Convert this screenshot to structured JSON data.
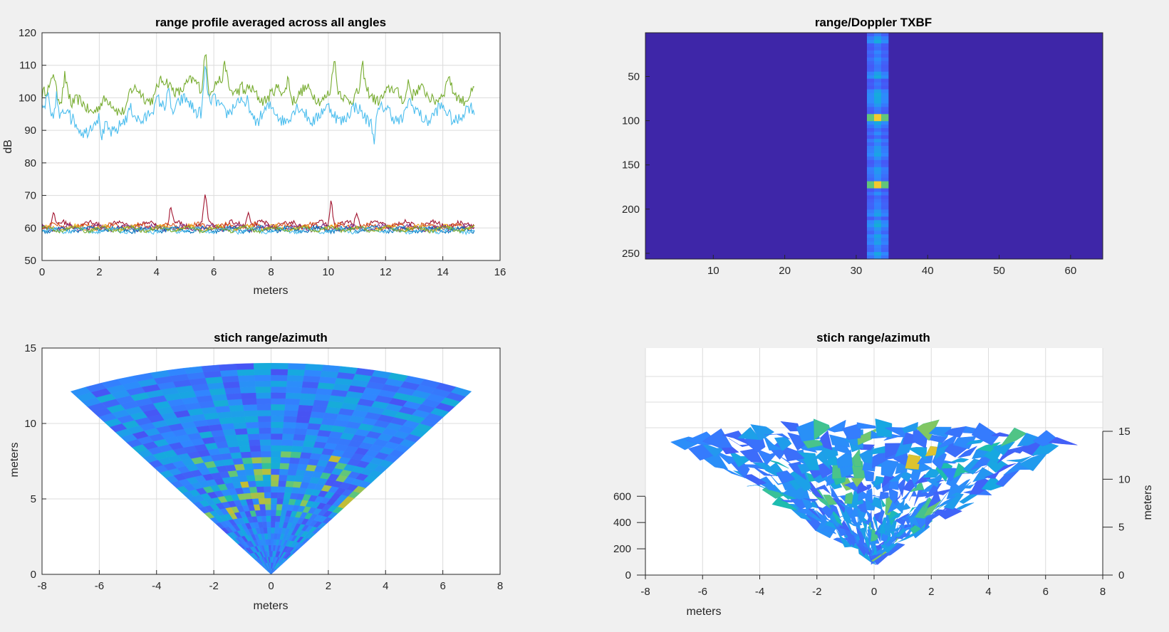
{
  "chart_data": [
    {
      "type": "line",
      "title": "range profile averaged across all angles",
      "xlabel": "meters",
      "ylabel": "dB",
      "xlim": [
        0,
        16
      ],
      "ylim": [
        50,
        120
      ],
      "xticks": [
        "0",
        "2",
        "4",
        "6",
        "8",
        "10",
        "12",
        "14",
        "16"
      ],
      "yticks": [
        "50",
        "60",
        "70",
        "80",
        "90",
        "100",
        "110",
        "120"
      ],
      "grid": true,
      "x_range": [
        0,
        15.1
      ],
      "series": [
        {
          "color": "#77ac30",
          "level": 101,
          "jitter": 3.5,
          "peaks": [
            [
              0.4,
              108
            ],
            [
              0.8,
              110
            ],
            [
              5.7,
              116
            ],
            [
              6.4,
              108
            ],
            [
              8.6,
              109
            ],
            [
              10.2,
              112
            ],
            [
              11.2,
              109
            ],
            [
              12.8,
              108
            ],
            [
              14.2,
              106
            ]
          ]
        },
        {
          "color": "#4dbeee",
          "level": 95,
          "jitter": 4,
          "peaks": [
            [
              0.2,
              101
            ],
            [
              0.5,
              104
            ],
            [
              2.1,
              89
            ],
            [
              4.4,
              104
            ],
            [
              5.7,
              109
            ],
            [
              7.2,
              100
            ],
            [
              11.6,
              88
            ],
            [
              12.8,
              99
            ]
          ]
        },
        {
          "color": "#a2142f",
          "level": 61,
          "jitter": 1.5,
          "peaks": [
            [
              0.4,
              65
            ],
            [
              4.5,
              67
            ],
            [
              5.7,
              71
            ],
            [
              10.1,
              70
            ],
            [
              7.2,
              66
            ],
            [
              11.0,
              65
            ]
          ]
        },
        {
          "color": "#d95319",
          "level": 60.5,
          "jitter": 1.3,
          "peaks": []
        },
        {
          "color": "#edb120",
          "level": 60,
          "jitter": 1.2,
          "peaks": []
        },
        {
          "color": "#7e2f8e",
          "level": 60,
          "jitter": 1.2,
          "peaks": []
        },
        {
          "color": "#0072bd",
          "level": 59.5,
          "jitter": 1.2,
          "peaks": []
        },
        {
          "color": "#4dbeee",
          "level": 59.2,
          "jitter": 1.1,
          "peaks": []
        },
        {
          "color": "#77ac30",
          "level": 59.6,
          "jitter": 1.1,
          "peaks": []
        }
      ]
    },
    {
      "type": "heatmap",
      "title": "range/Doppler TXBF",
      "xlim": [
        0.5,
        64.5
      ],
      "ylim": [
        0.5,
        256.5
      ],
      "xticks": [
        "10",
        "20",
        "30",
        "40",
        "50",
        "60"
      ],
      "yticks": [
        "50",
        "100",
        "150",
        "200",
        "250"
      ],
      "background_color": "#3e26a8",
      "band_columns": [
        31.5,
        34.5
      ],
      "band_peak_rows": [
        95,
        172
      ],
      "colormap": "parula"
    },
    {
      "type": "heatmap",
      "title": "stich range/azimuth",
      "xlabel": "meters",
      "ylabel": "meters",
      "xlim": [
        -8,
        8
      ],
      "ylim": [
        0,
        15
      ],
      "xticks": [
        "-8",
        "-6",
        "-4",
        "-2",
        "0",
        "2",
        "4",
        "6",
        "8"
      ],
      "yticks": [
        "0",
        "5",
        "10",
        "15"
      ],
      "grid": true,
      "max_range": 14,
      "half_angle_deg": 30,
      "colormap": "parula"
    },
    {
      "type": "heatmap",
      "title": "stich range/azimuth",
      "xlabel": "meters",
      "ylabel": "meters",
      "surface_view": "3d",
      "xlim": [
        -8,
        8
      ],
      "xticks": [
        "-8",
        "-6",
        "-4",
        "-2",
        "0",
        "2",
        "4",
        "6",
        "8"
      ],
      "zticks": [
        "0",
        "200",
        "400",
        "600"
      ],
      "yticks_right": [
        "0",
        "5",
        "10",
        "15"
      ],
      "colormap": "parula"
    }
  ]
}
